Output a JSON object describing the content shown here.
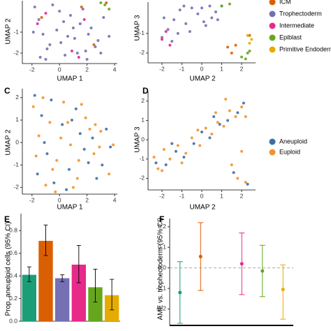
{
  "chart_data": [
    {
      "type": "scatter",
      "xlabel": "UMAP 1",
      "ylabel": "UMAP 2",
      "xlim": [
        -2.7,
        4.2
      ],
      "ylim": [
        -2.5,
        0.5
      ],
      "xticks": [
        -2,
        0,
        2,
        4
      ],
      "yticks": [
        -1,
        -2
      ],
      "series": [
        {
          "name": "Trophectoderm",
          "color": "#7570b3",
          "x": [
            -1.8,
            -1.5,
            -1.2,
            -0.9,
            -0.5,
            -0.2,
            0.1,
            0.4,
            0.8,
            1.1,
            1.5,
            1.9,
            2.3,
            2.8,
            3.2,
            -1.4,
            -0.7,
            0.3,
            1.3,
            2.1,
            -1.0,
            0.6,
            1.7,
            2.6,
            -1.9,
            0.0,
            1.0,
            2.0,
            3.0,
            3.6
          ],
          "y": [
            0.2,
            -0.4,
            -1.1,
            -1.8,
            0.3,
            -0.9,
            -1.5,
            -2.1,
            -0.2,
            -1.3,
            -0.6,
            -1.9,
            -0.8,
            -1.4,
            -0.3,
            -2.2,
            -1.6,
            -0.5,
            -2.0,
            -1.1,
            -2.3,
            -1.2,
            0.1,
            -1.7,
            -1.0,
            0.0,
            -0.8,
            -2.3,
            -2.0,
            -1.2
          ]
        },
        {
          "name": "ICM",
          "color": "#d95f02",
          "x": [
            -1.3,
            1.6,
            2.5,
            3.4
          ],
          "y": [
            -0.3,
            0.2,
            -1.6,
            0.4
          ]
        },
        {
          "name": "Intermediate",
          "color": "#e7298a",
          "x": [
            -1.6,
            -1.0,
            0.9,
            1.4,
            1.8
          ],
          "y": [
            -0.6,
            -0.1,
            -1.9,
            -2.2,
            -0.4
          ]
        },
        {
          "name": "Epiblast",
          "color": "#66a61e",
          "x": [
            3.0,
            3.3,
            3.6
          ],
          "y": [
            0.4,
            0.3,
            0.1
          ]
        }
      ]
    },
    {
      "type": "scatter",
      "xlabel": "UMAP 2",
      "ylabel": "UMAP 3",
      "xlim": [
        -2.7,
        2.7
      ],
      "ylim": [
        -2.5,
        0.6
      ],
      "xticks": [
        -2,
        -1,
        0,
        1,
        2
      ],
      "yticks": [
        -1,
        -2
      ],
      "series": [
        {
          "name": "ICM",
          "color": "#d95f02",
          "x": [
            1.3,
            1.5,
            1.7,
            2.4
          ],
          "y": [
            -1.7,
            -2.0,
            -1.6,
            -1.1
          ]
        },
        {
          "name": "Trophectoderm",
          "color": "#7570b3",
          "x": [
            -2.0,
            -1.7,
            -1.4,
            -1.1,
            -0.8,
            -0.5,
            -0.2,
            0.1,
            0.4,
            0.7,
            1.0,
            -1.9,
            -1.2,
            -0.6,
            0.0,
            0.5,
            -1.5,
            -0.9,
            0.2,
            0.8
          ],
          "y": [
            -1.2,
            -0.8,
            -0.3,
            0.2,
            -0.5,
            0.3,
            0.0,
            -0.4,
            0.4,
            0.1,
            0.4,
            -0.2,
            -1.0,
            -0.9,
            0.3,
            -0.2,
            -1.4,
            0.4,
            -0.6,
            -0.3
          ]
        },
        {
          "name": "Intermediate",
          "color": "#e7298a",
          "x": [
            -2.0,
            -1.8,
            -1.6
          ],
          "y": [
            -1.3,
            -0.9,
            -1.6
          ]
        },
        {
          "name": "Epiblast",
          "color": "#66a61e",
          "x": [
            1.0,
            1.4,
            2.0,
            2.2,
            2.4,
            2.3
          ],
          "y": [
            0.4,
            0.5,
            -2.2,
            -2.3,
            -1.9,
            -2.0
          ]
        },
        {
          "name": "Primitive Endoderm",
          "color": "#e6ab02",
          "x": [
            2.3,
            2.5,
            2.4
          ],
          "y": [
            -1.1,
            -1.3,
            -1.5
          ]
        }
      ]
    },
    {
      "type": "scatter",
      "panel": "C",
      "xlabel": "UMAP 1",
      "ylabel": "UMAP 2",
      "xlim": [
        -2.7,
        4.2
      ],
      "ylim": [
        -2.3,
        2.4
      ],
      "xticks": [
        -2,
        0,
        2,
        4
      ],
      "yticks": [
        -2,
        -1,
        0,
        1,
        2
      ],
      "series": [
        {
          "name": "Aneuploid",
          "color": "#3d6fa3",
          "x": [
            -1.8,
            -1.3,
            -0.9,
            -0.4,
            0.2,
            0.7,
            1.2,
            1.8,
            2.4,
            3.1,
            3.7,
            -1.6,
            -0.6,
            0.5,
            1.5,
            2.7,
            -1.1,
            0.9,
            2.1,
            3.4
          ],
          "y": [
            2.1,
            1.2,
            -0.5,
            -1.8,
            0.8,
            -1.2,
            1.5,
            -0.3,
            0.2,
            -1.0,
            -0.2,
            -1.4,
            1.9,
            -2.1,
            0.4,
            -1.6,
            0.0,
            1.0,
            -0.9,
            0.6
          ]
        },
        {
          "name": "Euploid",
          "color": "#f2922f",
          "x": [
            -1.9,
            -1.5,
            -1.0,
            -0.7,
            -0.2,
            0.3,
            0.8,
            1.3,
            1.9,
            2.5,
            3.0,
            3.6,
            -1.7,
            -0.5,
            0.1,
            1.0,
            1.6,
            2.2,
            2.9,
            -1.2,
            -0.3,
            0.6,
            1.4,
            2.6,
            3.9
          ],
          "y": [
            1.6,
            0.3,
            -1.9,
            0.9,
            -0.8,
            1.8,
            -0.1,
            -1.6,
            1.1,
            -0.5,
            0.5,
            -1.4,
            -0.6,
            -1.2,
            0.2,
            -2.0,
            1.7,
            0.6,
            -0.2,
            2.0,
            -2.2,
            0.9,
            -0.8,
            0.8,
            -0.1
          ]
        }
      ]
    },
    {
      "type": "scatter",
      "panel": "D",
      "xlabel": "UMAP 2",
      "ylabel": "UMAP 3",
      "xlim": [
        -2.7,
        2.7
      ],
      "ylim": [
        -2.6,
        2.5
      ],
      "xticks": [
        -2,
        -1,
        0,
        1,
        2
      ],
      "yticks": [
        -2,
        -1,
        0,
        1,
        2
      ],
      "series": [
        {
          "name": "Aneuploid",
          "color": "#3d6fa3",
          "x": [
            -2.3,
            -1.8,
            -1.3,
            -0.9,
            -0.4,
            0.0,
            0.4,
            0.9,
            1.3,
            1.8,
            2.1,
            1.6,
            2.3,
            -1.5,
            0.6
          ],
          "y": [
            -1.2,
            -1.3,
            -0.6,
            -0.9,
            -0.2,
            0.4,
            0.1,
            0.8,
            1.0,
            1.4,
            1.9,
            -1.7,
            -2.3,
            -0.2,
            1.2
          ]
        },
        {
          "name": "Euploid",
          "color": "#f2922f",
          "x": [
            -2.4,
            -2.0,
            -1.6,
            -1.2,
            -0.8,
            -0.5,
            -0.1,
            0.2,
            0.5,
            0.8,
            1.1,
            1.4,
            1.7,
            2.0,
            2.2,
            -1.9,
            -1.0,
            -0.2,
            0.7,
            1.5,
            1.8,
            2.2,
            2.0,
            -2.2,
            1.2
          ],
          "y": [
            -0.9,
            -1.6,
            -1.0,
            -0.3,
            -0.7,
            0.1,
            -0.3,
            0.6,
            0.3,
            0.9,
            0.7,
            1.5,
            1.2,
            1.7,
            1.2,
            -0.5,
            -1.2,
            0.5,
            1.4,
            -1.3,
            -2.0,
            -2.2,
            -0.6,
            -1.5,
            2.1
          ]
        }
      ]
    },
    {
      "type": "bar",
      "panel": "E",
      "ylabel": "Prop. aneuploid cells (95% CI)",
      "ylim": [
        0,
        0.95
      ],
      "yticks": [
        {
          "value": 0,
          "label": "0.0"
        },
        0.2,
        0.4,
        0.6,
        0.8
      ],
      "colors": [
        "#1b9e77",
        "#d95f02",
        "#7570b3",
        "#e7298a",
        "#66a61e",
        "#e6ab02"
      ],
      "values": [
        0.41,
        0.71,
        0.38,
        0.5,
        0.3,
        0.23
      ],
      "lower": [
        0.35,
        0.58,
        0.35,
        0.34,
        0.17,
        0.1
      ],
      "upper": [
        0.48,
        0.85,
        0.41,
        0.67,
        0.46,
        0.37
      ]
    },
    {
      "type": "errorpoint",
      "panel": "F",
      "ylabel": "AME vs. trophectoderm (95% CI)",
      "ylim": [
        -0.28,
        0.24
      ],
      "yticks": [
        -0.2,
        -0.1,
        {
          "value": 0,
          "label": "0.0"
        },
        0.1,
        0.2
      ],
      "hline": 0,
      "colors": [
        "#1b9e77",
        "#d95f02",
        "#7570b3",
        "#e7298a",
        "#66a61e",
        "#e6ab02"
      ],
      "values": [
        -0.12,
        0.055,
        null,
        0.02,
        -0.015,
        -0.105
      ],
      "lower": [
        -0.27,
        -0.11,
        null,
        -0.13,
        -0.14,
        -0.25
      ],
      "upper": [
        0.03,
        0.22,
        null,
        0.17,
        0.11,
        0.015
      ]
    }
  ]
}
